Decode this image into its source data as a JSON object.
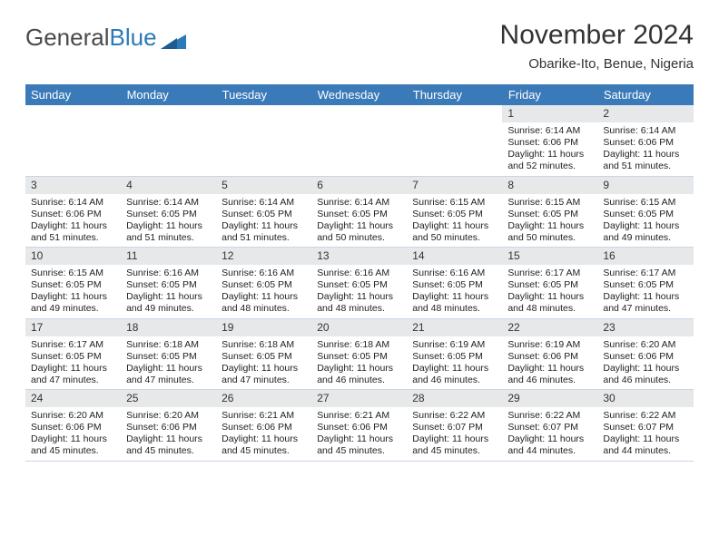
{
  "logo": {
    "text1": "General",
    "text2": "Blue"
  },
  "title": "November 2024",
  "subtitle": "Obarike-Ito, Benue, Nigeria",
  "colors": {
    "header_bg": "#3b7ab8",
    "header_text": "#ffffff",
    "daynum_bg": "#e7e8ea",
    "border": "#c9d6e4",
    "logo_gray": "#4a4a4a",
    "logo_blue": "#2a7ab9",
    "text": "#222222"
  },
  "fonts": {
    "title_size": 30,
    "subtitle_size": 15,
    "dayheader_size": 13,
    "daynum_size": 12,
    "cell_size": 10.5
  },
  "day_headers": [
    "Sunday",
    "Monday",
    "Tuesday",
    "Wednesday",
    "Thursday",
    "Friday",
    "Saturday"
  ],
  "weeks": [
    [
      {
        "blank": true
      },
      {
        "blank": true
      },
      {
        "blank": true
      },
      {
        "blank": true
      },
      {
        "blank": true
      },
      {
        "num": "1",
        "sunrise": "Sunrise: 6:14 AM",
        "sunset": "Sunset: 6:06 PM",
        "day1": "Daylight: 11 hours",
        "day2": "and 52 minutes."
      },
      {
        "num": "2",
        "sunrise": "Sunrise: 6:14 AM",
        "sunset": "Sunset: 6:06 PM",
        "day1": "Daylight: 11 hours",
        "day2": "and 51 minutes."
      }
    ],
    [
      {
        "num": "3",
        "sunrise": "Sunrise: 6:14 AM",
        "sunset": "Sunset: 6:06 PM",
        "day1": "Daylight: 11 hours",
        "day2": "and 51 minutes."
      },
      {
        "num": "4",
        "sunrise": "Sunrise: 6:14 AM",
        "sunset": "Sunset: 6:05 PM",
        "day1": "Daylight: 11 hours",
        "day2": "and 51 minutes."
      },
      {
        "num": "5",
        "sunrise": "Sunrise: 6:14 AM",
        "sunset": "Sunset: 6:05 PM",
        "day1": "Daylight: 11 hours",
        "day2": "and 51 minutes."
      },
      {
        "num": "6",
        "sunrise": "Sunrise: 6:14 AM",
        "sunset": "Sunset: 6:05 PM",
        "day1": "Daylight: 11 hours",
        "day2": "and 50 minutes."
      },
      {
        "num": "7",
        "sunrise": "Sunrise: 6:15 AM",
        "sunset": "Sunset: 6:05 PM",
        "day1": "Daylight: 11 hours",
        "day2": "and 50 minutes."
      },
      {
        "num": "8",
        "sunrise": "Sunrise: 6:15 AM",
        "sunset": "Sunset: 6:05 PM",
        "day1": "Daylight: 11 hours",
        "day2": "and 50 minutes."
      },
      {
        "num": "9",
        "sunrise": "Sunrise: 6:15 AM",
        "sunset": "Sunset: 6:05 PM",
        "day1": "Daylight: 11 hours",
        "day2": "and 49 minutes."
      }
    ],
    [
      {
        "num": "10",
        "sunrise": "Sunrise: 6:15 AM",
        "sunset": "Sunset: 6:05 PM",
        "day1": "Daylight: 11 hours",
        "day2": "and 49 minutes."
      },
      {
        "num": "11",
        "sunrise": "Sunrise: 6:16 AM",
        "sunset": "Sunset: 6:05 PM",
        "day1": "Daylight: 11 hours",
        "day2": "and 49 minutes."
      },
      {
        "num": "12",
        "sunrise": "Sunrise: 6:16 AM",
        "sunset": "Sunset: 6:05 PM",
        "day1": "Daylight: 11 hours",
        "day2": "and 48 minutes."
      },
      {
        "num": "13",
        "sunrise": "Sunrise: 6:16 AM",
        "sunset": "Sunset: 6:05 PM",
        "day1": "Daylight: 11 hours",
        "day2": "and 48 minutes."
      },
      {
        "num": "14",
        "sunrise": "Sunrise: 6:16 AM",
        "sunset": "Sunset: 6:05 PM",
        "day1": "Daylight: 11 hours",
        "day2": "and 48 minutes."
      },
      {
        "num": "15",
        "sunrise": "Sunrise: 6:17 AM",
        "sunset": "Sunset: 6:05 PM",
        "day1": "Daylight: 11 hours",
        "day2": "and 48 minutes."
      },
      {
        "num": "16",
        "sunrise": "Sunrise: 6:17 AM",
        "sunset": "Sunset: 6:05 PM",
        "day1": "Daylight: 11 hours",
        "day2": "and 47 minutes."
      }
    ],
    [
      {
        "num": "17",
        "sunrise": "Sunrise: 6:17 AM",
        "sunset": "Sunset: 6:05 PM",
        "day1": "Daylight: 11 hours",
        "day2": "and 47 minutes."
      },
      {
        "num": "18",
        "sunrise": "Sunrise: 6:18 AM",
        "sunset": "Sunset: 6:05 PM",
        "day1": "Daylight: 11 hours",
        "day2": "and 47 minutes."
      },
      {
        "num": "19",
        "sunrise": "Sunrise: 6:18 AM",
        "sunset": "Sunset: 6:05 PM",
        "day1": "Daylight: 11 hours",
        "day2": "and 47 minutes."
      },
      {
        "num": "20",
        "sunrise": "Sunrise: 6:18 AM",
        "sunset": "Sunset: 6:05 PM",
        "day1": "Daylight: 11 hours",
        "day2": "and 46 minutes."
      },
      {
        "num": "21",
        "sunrise": "Sunrise: 6:19 AM",
        "sunset": "Sunset: 6:05 PM",
        "day1": "Daylight: 11 hours",
        "day2": "and 46 minutes."
      },
      {
        "num": "22",
        "sunrise": "Sunrise: 6:19 AM",
        "sunset": "Sunset: 6:06 PM",
        "day1": "Daylight: 11 hours",
        "day2": "and 46 minutes."
      },
      {
        "num": "23",
        "sunrise": "Sunrise: 6:20 AM",
        "sunset": "Sunset: 6:06 PM",
        "day1": "Daylight: 11 hours",
        "day2": "and 46 minutes."
      }
    ],
    [
      {
        "num": "24",
        "sunrise": "Sunrise: 6:20 AM",
        "sunset": "Sunset: 6:06 PM",
        "day1": "Daylight: 11 hours",
        "day2": "and 45 minutes."
      },
      {
        "num": "25",
        "sunrise": "Sunrise: 6:20 AM",
        "sunset": "Sunset: 6:06 PM",
        "day1": "Daylight: 11 hours",
        "day2": "and 45 minutes."
      },
      {
        "num": "26",
        "sunrise": "Sunrise: 6:21 AM",
        "sunset": "Sunset: 6:06 PM",
        "day1": "Daylight: 11 hours",
        "day2": "and 45 minutes."
      },
      {
        "num": "27",
        "sunrise": "Sunrise: 6:21 AM",
        "sunset": "Sunset: 6:06 PM",
        "day1": "Daylight: 11 hours",
        "day2": "and 45 minutes."
      },
      {
        "num": "28",
        "sunrise": "Sunrise: 6:22 AM",
        "sunset": "Sunset: 6:07 PM",
        "day1": "Daylight: 11 hours",
        "day2": "and 45 minutes."
      },
      {
        "num": "29",
        "sunrise": "Sunrise: 6:22 AM",
        "sunset": "Sunset: 6:07 PM",
        "day1": "Daylight: 11 hours",
        "day2": "and 44 minutes."
      },
      {
        "num": "30",
        "sunrise": "Sunrise: 6:22 AM",
        "sunset": "Sunset: 6:07 PM",
        "day1": "Daylight: 11 hours",
        "day2": "and 44 minutes."
      }
    ]
  ]
}
